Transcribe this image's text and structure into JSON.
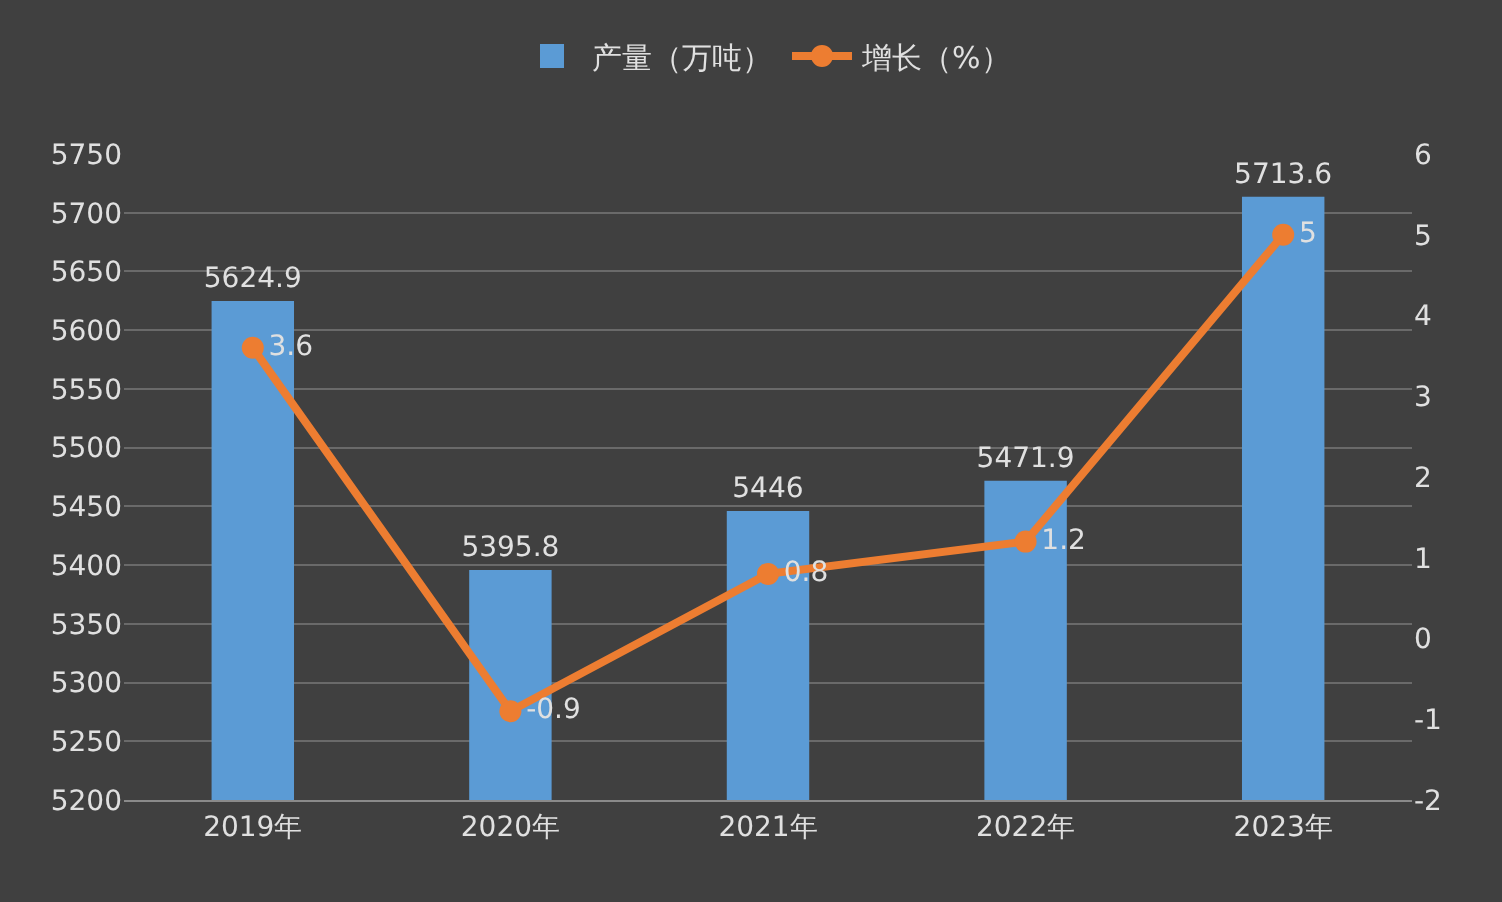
{
  "chart_data": {
    "type": "bar",
    "categories": [
      "2019年",
      "2020年",
      "2021年",
      "2022年",
      "2023年"
    ],
    "series": [
      {
        "name": "产量（万吨）",
        "color": "#5b9bd5",
        "values": [
          5624.9,
          5395.8,
          5446,
          5471.9,
          5713.6
        ]
      },
      {
        "name": "增长（%）",
        "type": "line",
        "axis": "y2",
        "color": "#ed7d31",
        "values": [
          3.6,
          -0.9,
          0.8,
          1.2,
          5
        ]
      }
    ],
    "ylim": [
      5200,
      5750
    ],
    "yticks": [
      5200,
      5250,
      5300,
      5350,
      5400,
      5450,
      5500,
      5550,
      5600,
      5650,
      5700,
      5750
    ],
    "y2lim": [
      -2,
      6
    ],
    "y2ticks": [
      -2,
      -1,
      0,
      1,
      2,
      3,
      4,
      5,
      6
    ],
    "grid": "y",
    "legend": "top",
    "marker": "circle",
    "line_style": "solid",
    "data_labels": true
  }
}
